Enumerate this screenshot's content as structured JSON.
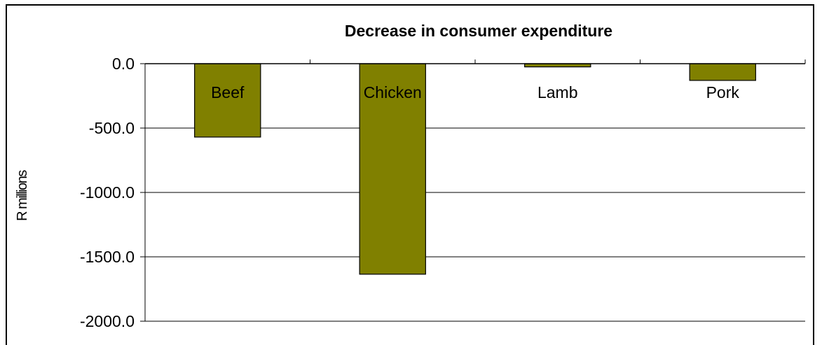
{
  "chart_data": {
    "type": "bar",
    "title": "Decrease in consumer expenditure",
    "xlabel": "",
    "ylabel": "R millions",
    "categories": [
      "Beef",
      "Chicken",
      "Lamb",
      "Pork"
    ],
    "values": [
      -570,
      -1635,
      -25,
      -130
    ],
    "ylim": [
      -2000,
      0
    ],
    "yticks": [
      0,
      -500,
      -1000,
      -1500,
      -2000
    ],
    "ytick_labels": [
      "0.0",
      "-500.0",
      "-1000.0",
      "-1500.0",
      "-2000.0"
    ],
    "grid": true,
    "legend": "none",
    "bar_color": "#808000"
  }
}
